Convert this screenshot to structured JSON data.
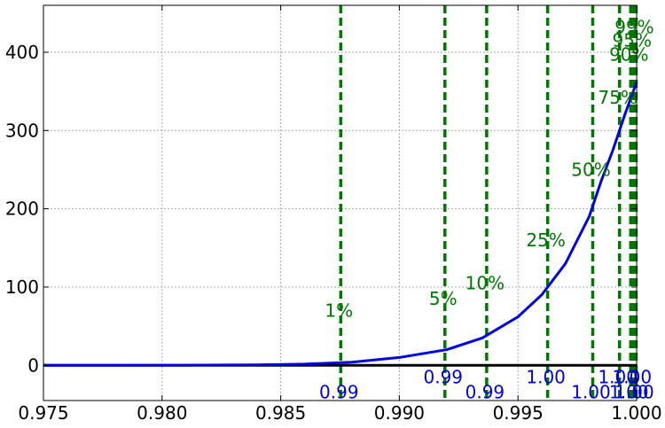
{
  "chart_data": {
    "type": "line",
    "title": "",
    "xlabel": "",
    "ylabel": "",
    "xlim": [
      0.975,
      1.0
    ],
    "ylim": [
      -45,
      460
    ],
    "grid": true,
    "x_ticks": [
      0.975,
      0.98,
      0.985,
      0.99,
      0.995,
      1.0
    ],
    "x_tick_labels": [
      "0.975",
      "0.980",
      "0.985",
      "0.990",
      "0.995",
      "1.000"
    ],
    "y_ticks": [
      0,
      100,
      200,
      300,
      400
    ],
    "y_tick_labels": [
      "0",
      "100",
      "200",
      "300",
      "400"
    ],
    "curve_color": "#0000dd",
    "zero_line_color": "#000000",
    "quantile_color": "#007700",
    "value_label_color": "#0000dd",
    "series": [
      {
        "x": [
          0.975,
          0.978,
          0.981,
          0.984,
          0.986,
          0.988,
          0.99,
          0.992,
          0.9935,
          0.995,
          0.996,
          0.997,
          0.998,
          0.9985,
          0.999,
          0.9995,
          1.0
        ],
        "values": [
          0.0,
          0.05,
          0.2,
          0.6,
          1.5,
          4,
          10,
          20,
          35,
          62,
          90,
          130,
          190,
          235,
          275,
          320,
          362
        ]
      }
    ],
    "quantiles": [
      {
        "label": "1%",
        "x": 0.98753,
        "label_y": 70,
        "value_label": "0.99",
        "value_y": -34
      },
      {
        "label": "5%",
        "x": 0.99192,
        "label_y": 85,
        "value_label": "0.99",
        "value_y": -15
      },
      {
        "label": "10%",
        "x": 0.99368,
        "label_y": 105,
        "value_label": "0.99",
        "value_y": -34
      },
      {
        "label": "25%",
        "x": 0.99625,
        "label_y": 160,
        "value_label": "1.00",
        "value_y": -15
      },
      {
        "label": "50%",
        "x": 0.99815,
        "label_y": 250,
        "value_label": "1.00",
        "value_y": -34
      },
      {
        "label": "75%",
        "x": 0.99928,
        "label_y": 342,
        "value_label": "1.00",
        "value_y": -15
      },
      {
        "label": "90%",
        "x": 0.99975,
        "label_y": 397,
        "value_label": "1.00",
        "value_y": -34
      },
      {
        "label": "95%",
        "x": 0.99988,
        "label_y": 415,
        "value_label": "1.00",
        "value_y": -15
      },
      {
        "label": "99%",
        "x": 0.99998,
        "label_y": 432,
        "value_label": "1.00",
        "value_y": -34
      }
    ]
  }
}
